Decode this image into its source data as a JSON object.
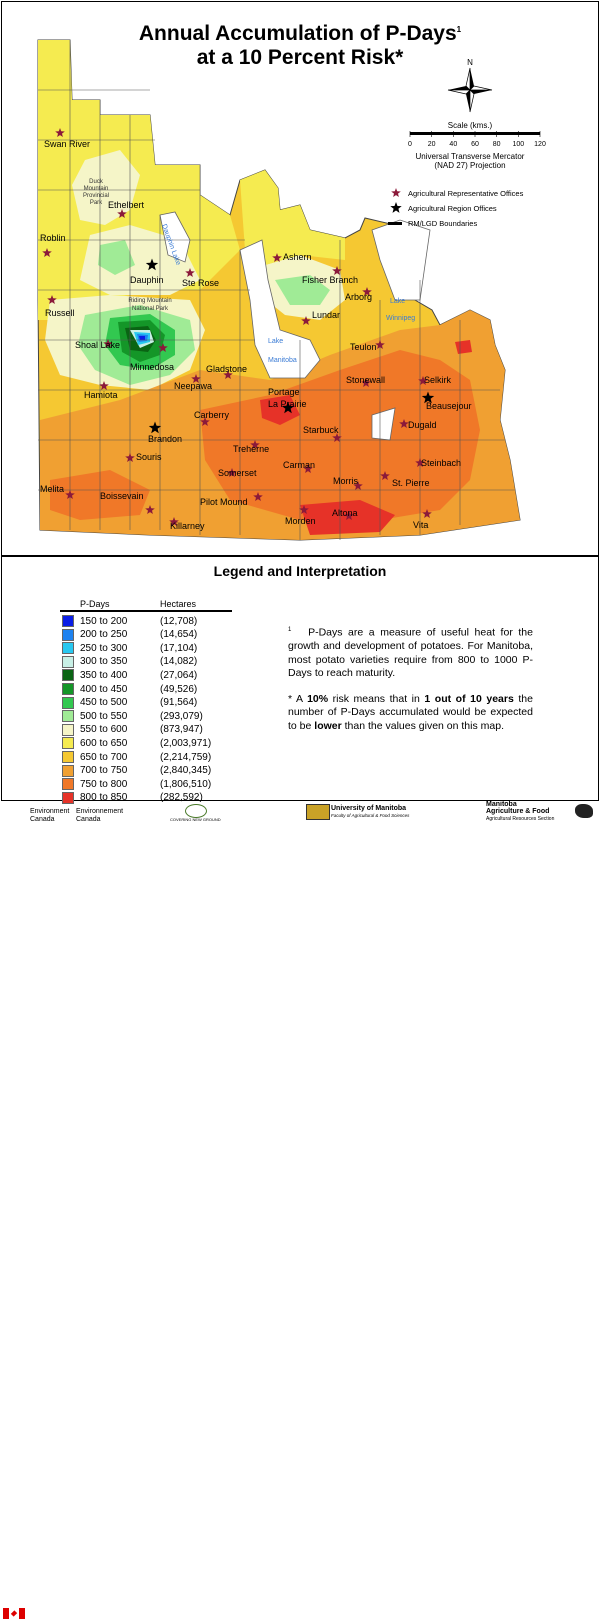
{
  "title": {
    "line1": "Annual Accumulation of P-Days",
    "footnote_mark": "1",
    "line2": "at a 10 Percent Risk*"
  },
  "scale": {
    "label": "Scale (kms.)",
    "ticks": [
      "0",
      "20",
      "40",
      "60",
      "80",
      "100",
      "120"
    ],
    "projection_line1": "Universal Transverse Mercator",
    "projection_line2": "(NAD 27) Projection"
  },
  "compass": {
    "north_label": "N",
    "icon": "north-arrow-compass-icon"
  },
  "map_legend": {
    "ag_rep_offices": "Agricultural Representative Offices",
    "ag_region_offices": "Agricultural Region Offices",
    "boundaries": "RM/LGD Boundaries"
  },
  "places": [
    {
      "name": "Swan River"
    },
    {
      "name": "Ethelbert"
    },
    {
      "name": "Roblin"
    },
    {
      "name": "Dauphin"
    },
    {
      "name": "Ste Rose"
    },
    {
      "name": "Ashern"
    },
    {
      "name": "Fisher Branch"
    },
    {
      "name": "Arborg"
    },
    {
      "name": "Russell"
    },
    {
      "name": "Lundar"
    },
    {
      "name": "Shoal Lake"
    },
    {
      "name": "Minnedosa"
    },
    {
      "name": "Gladstone"
    },
    {
      "name": "Neepawa"
    },
    {
      "name": "Teulon"
    },
    {
      "name": "Stonewall"
    },
    {
      "name": "Selkirk"
    },
    {
      "name": "Hamiota"
    },
    {
      "name": "Portage"
    },
    {
      "name": "La Prairie"
    },
    {
      "name": "Beausejour"
    },
    {
      "name": "Carberry"
    },
    {
      "name": "Dugald"
    },
    {
      "name": "Brandon"
    },
    {
      "name": "Starbuck"
    },
    {
      "name": "Souris"
    },
    {
      "name": "Treherne"
    },
    {
      "name": "Carman"
    },
    {
      "name": "Steinbach"
    },
    {
      "name": "Somerset"
    },
    {
      "name": "Melita"
    },
    {
      "name": "Morris"
    },
    {
      "name": "St. Pierre"
    },
    {
      "name": "Boissevain"
    },
    {
      "name": "Pilot Mound"
    },
    {
      "name": "Killarney"
    },
    {
      "name": "Morden"
    },
    {
      "name": "Altona"
    },
    {
      "name": "Vita"
    }
  ],
  "features": {
    "duck_mountain": [
      "Duck",
      "Mountain",
      "Provincial",
      "Park"
    ],
    "riding_mountain": [
      "Riding Mountain",
      "National Park"
    ],
    "dauphin_lake": "Dauphin Lake",
    "lake_manitoba": [
      "Lake",
      "Manitoba"
    ],
    "lake_winnipeg": [
      "Lake",
      "Winnipeg"
    ]
  },
  "legend": {
    "title": "Legend and Interpretation",
    "col_pdays": "P-Days",
    "col_hectares": "Hectares",
    "rows": [
      {
        "range": "150 to 200",
        "hectares": "(12,708)",
        "color": "#0a1ee6"
      },
      {
        "range": "200 to 250",
        "hectares": "(14,654)",
        "color": "#1e82f0"
      },
      {
        "range": "250 to 300",
        "hectares": "(17,104)",
        "color": "#28c8f0"
      },
      {
        "range": "300 to 350",
        "hectares": "(14,082)",
        "color": "#c8f0e6"
      },
      {
        "range": "350 to 400",
        "hectares": "(27,064)",
        "color": "#0a6414"
      },
      {
        "range": "400 to 450",
        "hectares": "(49,526)",
        "color": "#149628"
      },
      {
        "range": "450 to 500",
        "hectares": "(91,564)",
        "color": "#32c850"
      },
      {
        "range": "500 to 550",
        "hectares": "(293,079)",
        "color": "#a0eb96"
      },
      {
        "range": "550 to 600",
        "hectares": "(873,947)",
        "color": "#f5f5c8"
      },
      {
        "range": "600 to 650",
        "hectares": "(2,003,971)",
        "color": "#f5eb50"
      },
      {
        "range": "650 to 700",
        "hectares": "(2,214,759)",
        "color": "#f5c832"
      },
      {
        "range": "700 to 750",
        "hectares": "(2,840,345)",
        "color": "#f0a032"
      },
      {
        "range": "750 to 800",
        "hectares": "(1,806,510)",
        "color": "#f07828"
      },
      {
        "range": "800 to 850",
        "hectares": "(282,592)",
        "color": "#e63228"
      }
    ]
  },
  "interpretation": {
    "note_mark": "1",
    "note_text": "P-Days are a measure of useful heat for the growth and development of potatoes. For Manitoba, most potato varieties require from 800 to 1000 P-Days to reach maturity.",
    "risk_prefix": "* A",
    "risk_pct": "10%",
    "risk_mid": "risk means that in",
    "risk_years": "1 out of 10 years",
    "risk_mid2": "the number of P-Days accumulated would be expected to be",
    "risk_lower": "lower",
    "risk_end": "than the values given on this map."
  },
  "footer": {
    "env_canada_1": "Environment",
    "env_canada_1b": "Canada",
    "env_canada_2": "Environnement",
    "env_canada_2b": "Canada",
    "cover_ground": "COVERING NEW GROUND",
    "uofm": "University of Manitoba",
    "uofm_sub": "Faculty of Agricultural & Food Sciences",
    "mb_ag_1": "Manitoba",
    "mb_ag_2": "Agriculture & Food",
    "mb_ag_3": "Agricultural Resources Section"
  },
  "colors": {
    "water": "#ffffff",
    "star_office": "#8b1a3a",
    "star_region": "#000000"
  }
}
